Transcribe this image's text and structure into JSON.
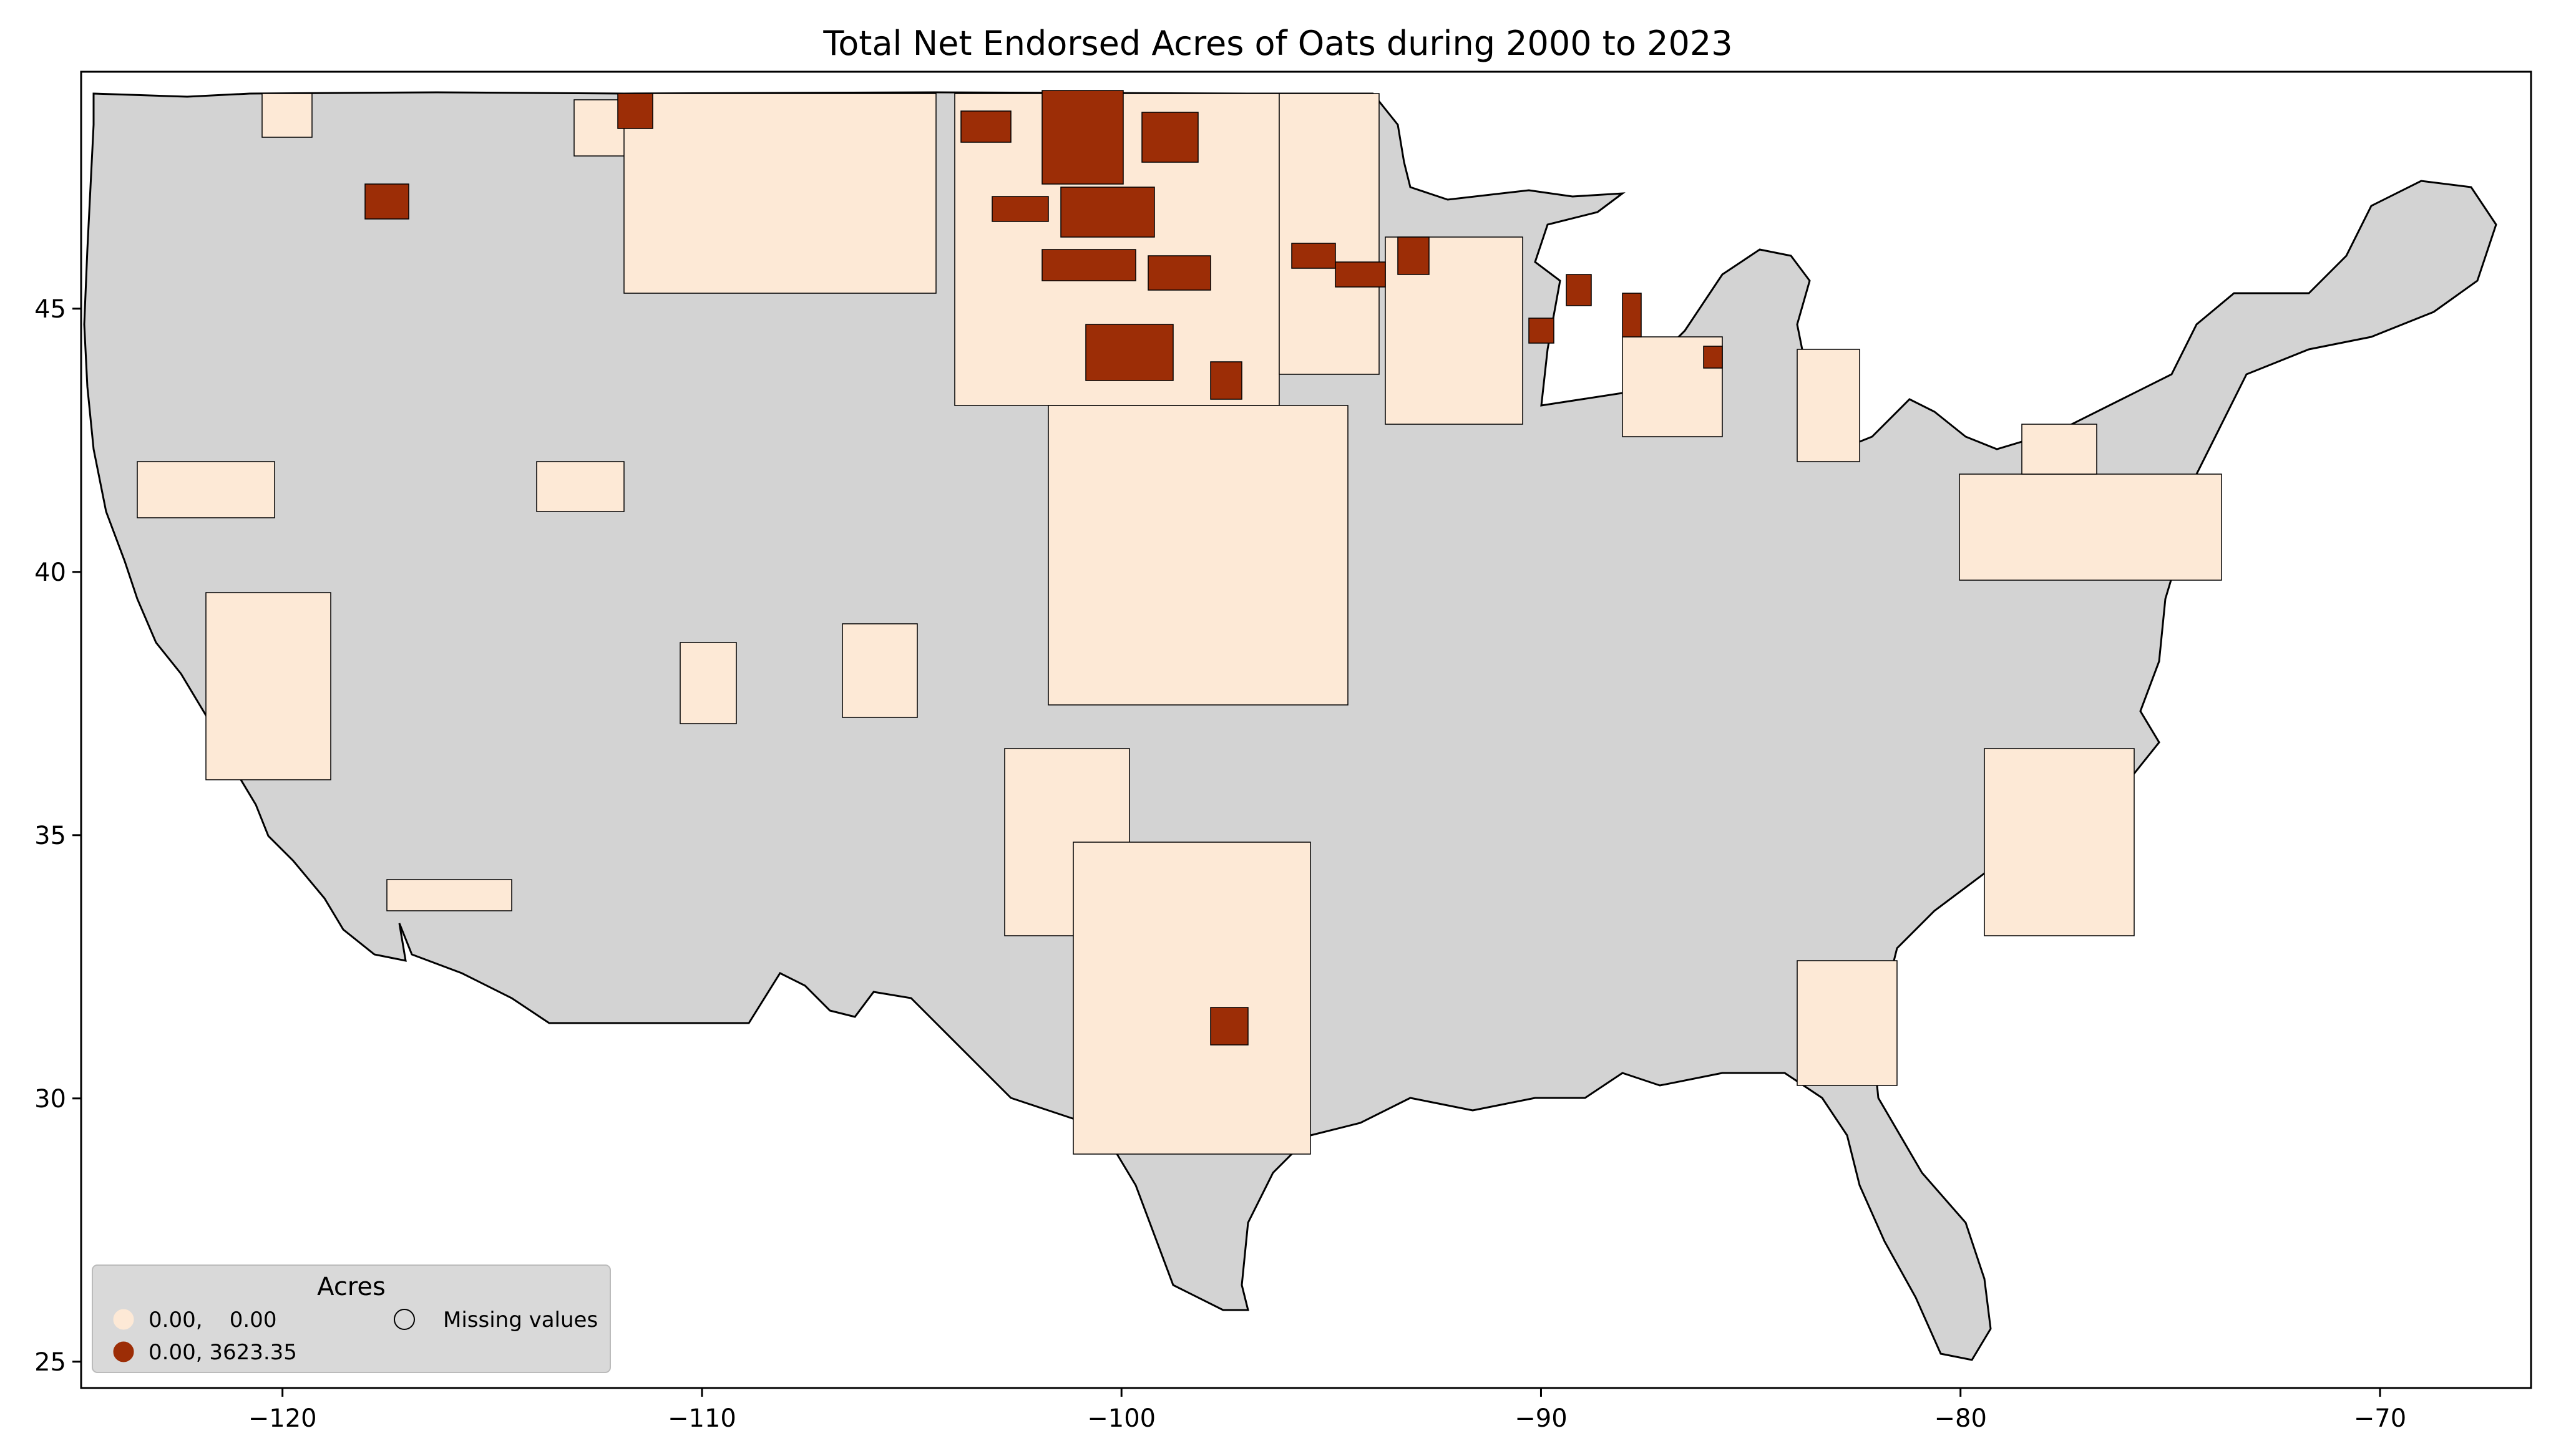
{
  "chart_data": {
    "type": "choropleth",
    "title": "Total Net Endorsed Acres of Oats during 2000 to 2023",
    "x_ticks": [
      -120,
      -110,
      -100,
      -90,
      -80,
      -70
    ],
    "y_ticks": [
      25,
      30,
      35,
      40,
      45
    ],
    "xlim": [
      -124.8,
      -66.4
    ],
    "ylim": [
      24.5,
      49.5
    ],
    "legend": {
      "title": "Acres",
      "placement": "lower-left",
      "entries": [
        {
          "label": "0.00,    0.00",
          "color": "#fde9d6"
        },
        {
          "label": "0.00, 3623.35",
          "color": "#9c2d06"
        },
        {
          "label": "Missing values",
          "color": "none"
        }
      ]
    },
    "colors": {
      "missing": "#d3d3d3",
      "low": "#fde9d6",
      "high": "#9c2d06",
      "border": "#000000"
    }
  }
}
